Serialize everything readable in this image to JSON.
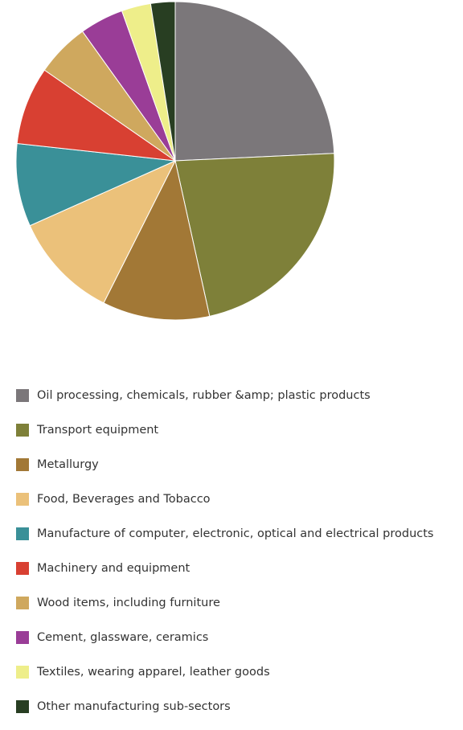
{
  "chart_data": {
    "type": "pie",
    "title": "",
    "legend_position": "bottom",
    "start_angle_deg": 0,
    "direction": "clockwise",
    "slices": [
      {
        "label": "Oil processing, chemicals, rubber &amp; plastic products",
        "value": 24.5,
        "color": "#7b777a"
      },
      {
        "label": "Transport equipment",
        "value": 22.5,
        "color": "#7e8039"
      },
      {
        "label": "Metallurgy",
        "value": 11.0,
        "color": "#a27836"
      },
      {
        "label": "Food, Beverages and Tobacco",
        "value": 11.0,
        "color": "#ebc17a"
      },
      {
        "label": "Manufacture of computer, electronic, optical and electrical products",
        "value": 8.5,
        "color": "#3a9098"
      },
      {
        "label": "Machinery and equipment",
        "value": 8.0,
        "color": "#d84032"
      },
      {
        "label": "Wood items, including furniture",
        "value": 5.5,
        "color": "#cfa85e"
      },
      {
        "label": "Cement, glassware, ceramics",
        "value": 4.5,
        "color": "#9a3d97"
      },
      {
        "label": "Textiles, wearing apparel, leather goods",
        "value": 3.0,
        "color": "#eeee8a"
      },
      {
        "label": "Other manufacturing sub-sectors",
        "value": 2.5,
        "color": "#283e22"
      }
    ]
  }
}
